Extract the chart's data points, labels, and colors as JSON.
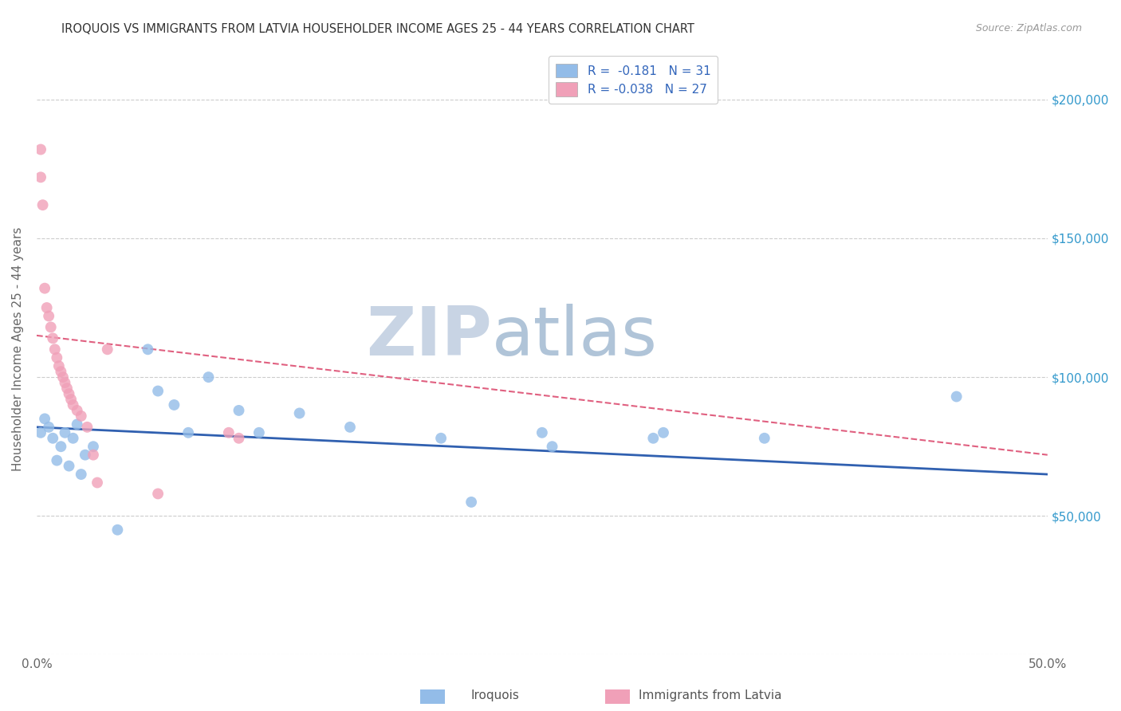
{
  "title": "IROQUOIS VS IMMIGRANTS FROM LATVIA HOUSEHOLDER INCOME AGES 25 - 44 YEARS CORRELATION CHART",
  "source": "Source: ZipAtlas.com",
  "ylabel": "Householder Income Ages 25 - 44 years",
  "x_min": 0.0,
  "x_max": 0.5,
  "y_min": 0,
  "y_max": 220000,
  "y_ticks": [
    0,
    50000,
    100000,
    150000,
    200000
  ],
  "iroquois_color": "#93bce8",
  "latvia_color": "#f0a0b8",
  "iroquois_line_color": "#3060b0",
  "latvia_line_color": "#e06080",
  "background_color": "#ffffff",
  "grid_color": "#cccccc",
  "watermark_zip": "ZIP",
  "watermark_atlas": "atlas",
  "watermark_color_zip": "#d0d8e8",
  "watermark_color_atlas": "#b8cce0",
  "r_iroquois": -0.181,
  "r_latvia": -0.038,
  "n_iroquois": 31,
  "n_latvia": 27,
  "iroquois_x": [
    0.002,
    0.004,
    0.006,
    0.008,
    0.01,
    0.012,
    0.014,
    0.016,
    0.018,
    0.02,
    0.022,
    0.024,
    0.028,
    0.04,
    0.055,
    0.06,
    0.068,
    0.075,
    0.085,
    0.1,
    0.11,
    0.13,
    0.155,
    0.2,
    0.215,
    0.25,
    0.255,
    0.305,
    0.31,
    0.36,
    0.455
  ],
  "iroquois_y": [
    80000,
    85000,
    82000,
    78000,
    70000,
    75000,
    80000,
    68000,
    78000,
    83000,
    65000,
    72000,
    75000,
    45000,
    110000,
    95000,
    90000,
    80000,
    100000,
    88000,
    80000,
    87000,
    82000,
    78000,
    55000,
    80000,
    75000,
    78000,
    80000,
    78000,
    93000
  ],
  "latvia_x": [
    0.002,
    0.002,
    0.003,
    0.004,
    0.005,
    0.006,
    0.007,
    0.008,
    0.009,
    0.01,
    0.011,
    0.012,
    0.013,
    0.014,
    0.015,
    0.016,
    0.017,
    0.018,
    0.02,
    0.022,
    0.025,
    0.028,
    0.03,
    0.035,
    0.06,
    0.095,
    0.1
  ],
  "latvia_y": [
    182000,
    172000,
    162000,
    132000,
    125000,
    122000,
    118000,
    114000,
    110000,
    107000,
    104000,
    102000,
    100000,
    98000,
    96000,
    94000,
    92000,
    90000,
    88000,
    86000,
    82000,
    72000,
    62000,
    110000,
    58000,
    80000,
    78000
  ]
}
